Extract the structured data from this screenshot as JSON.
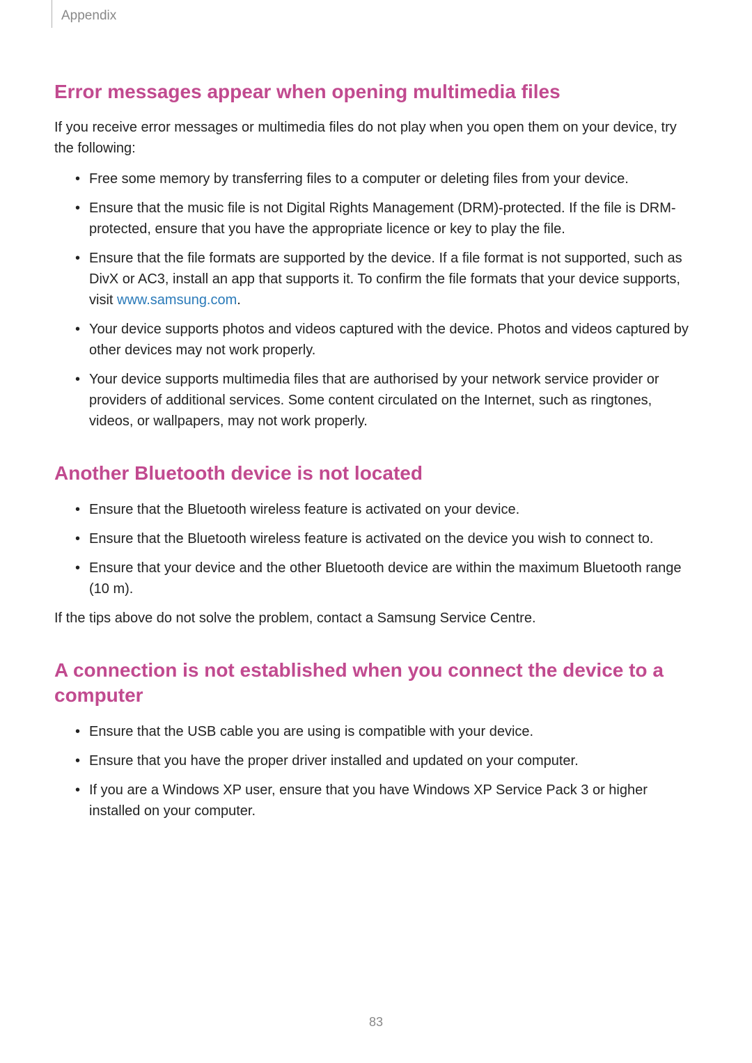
{
  "header": {
    "breadcrumb": "Appendix"
  },
  "sections": {
    "s1": {
      "heading": "Error messages appear when opening multimedia files",
      "intro": "If you receive error messages or multimedia files do not play when you open them on your device, try the following:",
      "bullets": {
        "b1": "Free some memory by transferring files to a computer or deleting files from your device.",
        "b2": "Ensure that the music file is not Digital Rights Management (DRM)-protected. If the file is DRM-protected, ensure that you have the appropriate licence or key to play the file.",
        "b3_pre": "Ensure that the file formats are supported by the device. If a file format is not supported, such as DivX or AC3, install an app that supports it. To confirm the file formats that your device supports, visit ",
        "b3_link": "www.samsung.com",
        "b3_post": ".",
        "b4": "Your device supports photos and videos captured with the device. Photos and videos captured by other devices may not work properly.",
        "b5": "Your device supports multimedia files that are authorised by your network service provider or providers of additional services. Some content circulated on the Internet, such as ringtones, videos, or wallpapers, may not work properly."
      }
    },
    "s2": {
      "heading": "Another Bluetooth device is not located",
      "bullets": {
        "b1": "Ensure that the Bluetooth wireless feature is activated on your device.",
        "b2": "Ensure that the Bluetooth wireless feature is activated on the device you wish to connect to.",
        "b3": "Ensure that your device and the other Bluetooth device are within the maximum Bluetooth range (10 m)."
      },
      "closing": "If the tips above do not solve the problem, contact a Samsung Service Centre."
    },
    "s3": {
      "heading": "A connection is not established when you connect the device to a computer",
      "bullets": {
        "b1": "Ensure that the USB cable you are using is compatible with your device.",
        "b2": "Ensure that you have the proper driver installed and updated on your computer.",
        "b3": "If you are a Windows XP user, ensure that you have Windows XP Service Pack 3 or higher installed on your computer."
      }
    }
  },
  "pageNumber": "83",
  "colors": {
    "heading": "#c14a8f",
    "link": "#2a7ab9",
    "body_text": "#222222",
    "muted": "#888888",
    "background": "#ffffff"
  },
  "typography": {
    "heading_fontsize": 28,
    "body_fontsize": 20,
    "breadcrumb_fontsize": 19,
    "pagenum_fontsize": 18
  }
}
